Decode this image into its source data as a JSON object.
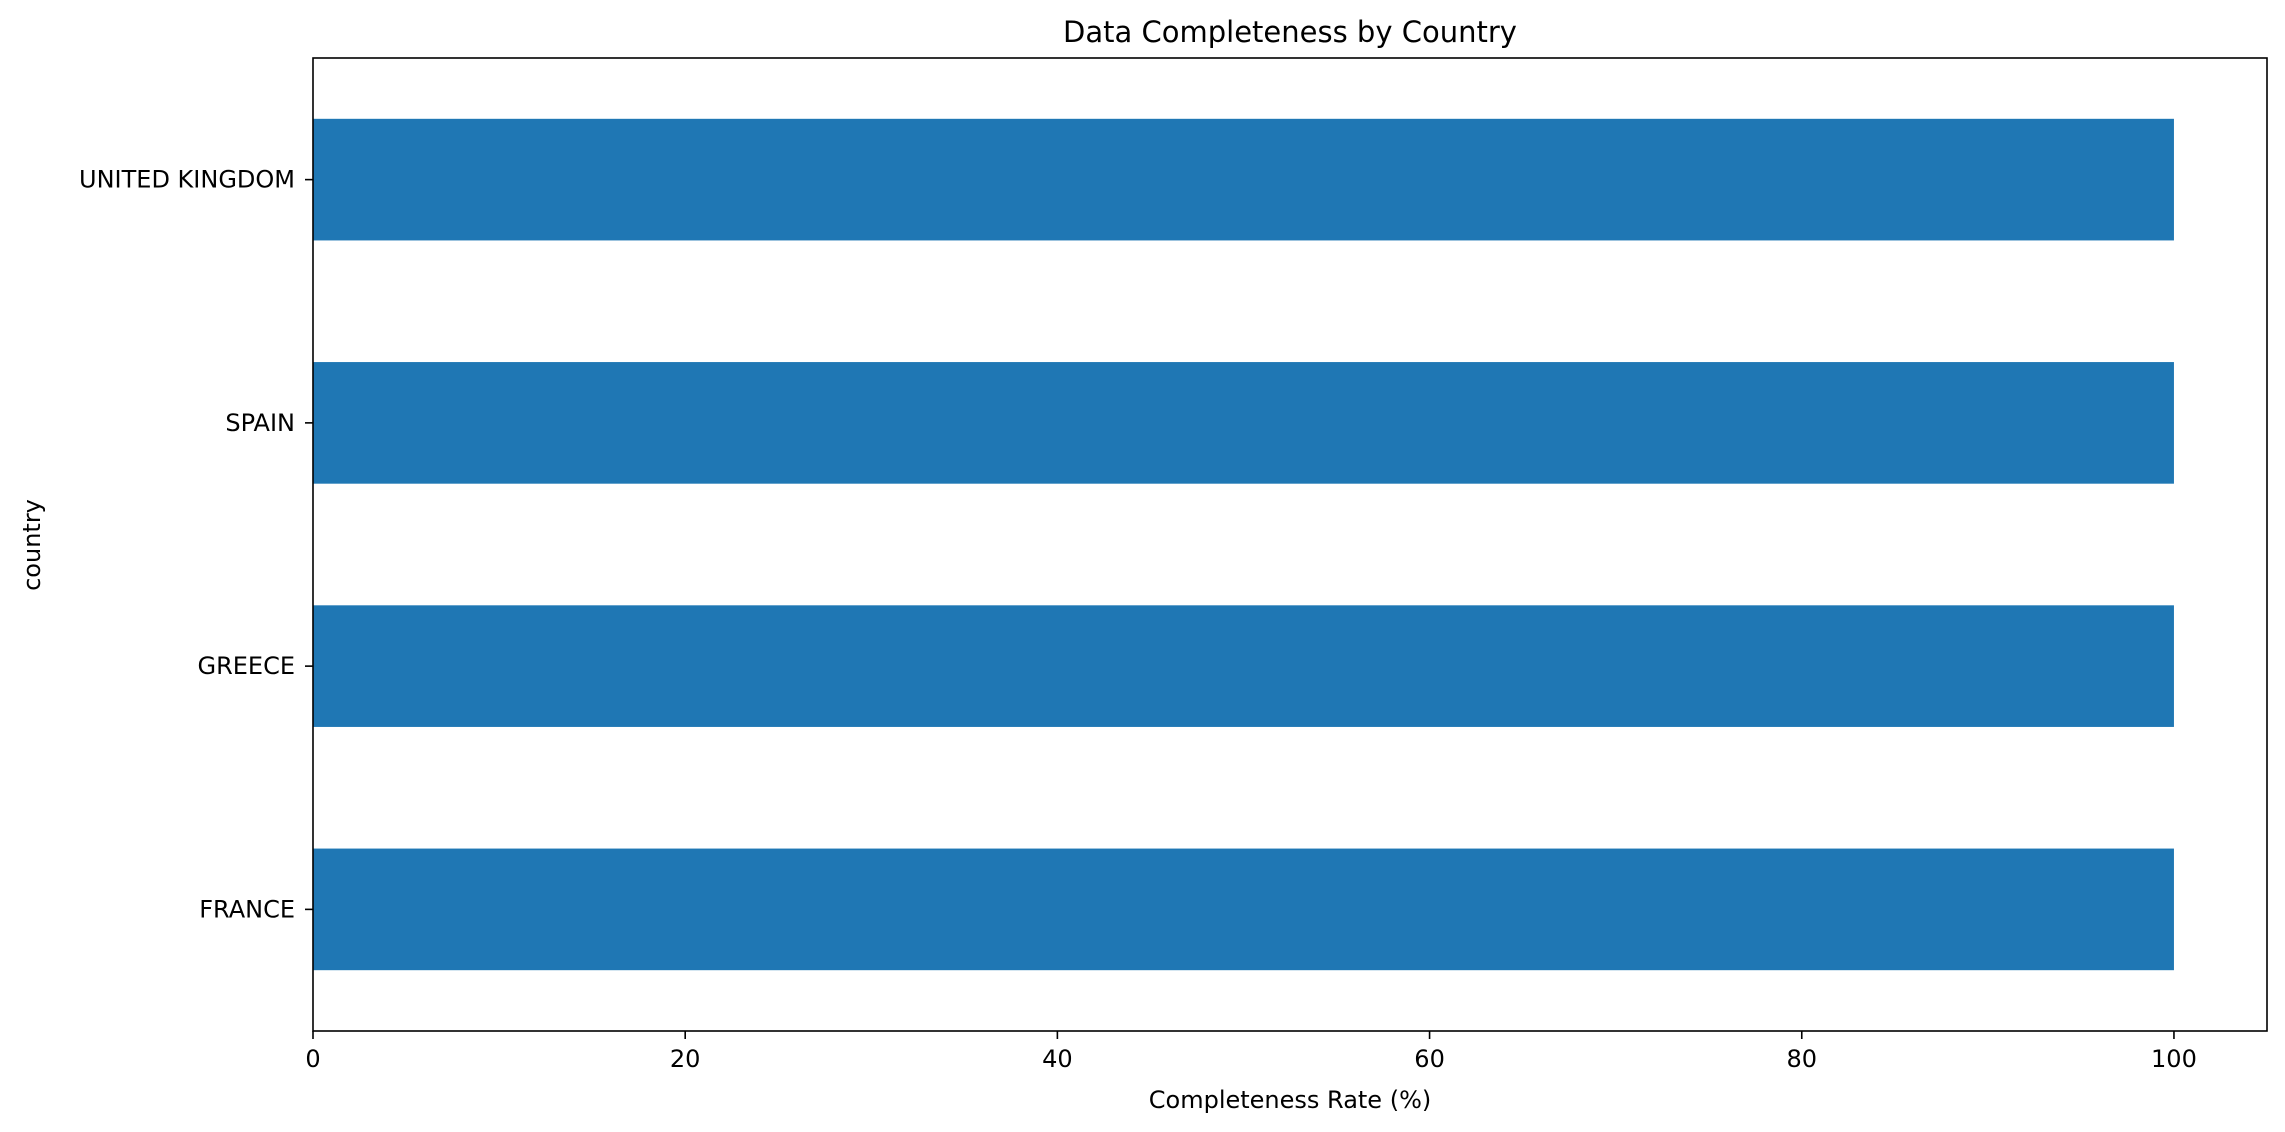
{
  "chart_data": {
    "type": "bar",
    "orientation": "horizontal",
    "title": "Data Completeness by Country",
    "xlabel": "Completeness Rate (%)",
    "ylabel": "country",
    "categories": [
      "FRANCE",
      "GREECE",
      "SPAIN",
      "UNITED KINGDOM"
    ],
    "values": [
      100,
      100,
      100,
      100
    ],
    "xlim": [
      0,
      105
    ],
    "xticks": [
      0,
      20,
      40,
      60,
      80,
      100
    ],
    "xtick_labels": [
      "0",
      "20",
      "40",
      "60",
      "80",
      "100"
    ],
    "grid": false,
    "legend": "none",
    "bar_color": "#1f77b4"
  }
}
